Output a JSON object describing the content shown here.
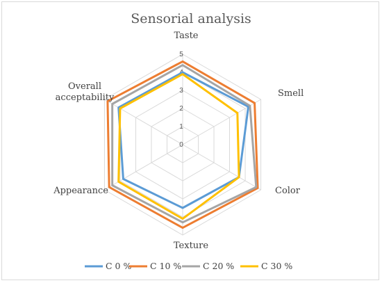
{
  "chart_data": {
    "type": "radar",
    "title": "Sensorial analysis",
    "axes": [
      "Taste",
      "Smell",
      "Color",
      "Texture",
      "Appearance",
      "Overall acceptability"
    ],
    "axis_label_lines": [
      [
        "Taste"
      ],
      [
        "Smell"
      ],
      [
        "Color"
      ],
      [
        "Texture"
      ],
      [
        "Appearance"
      ],
      [
        "Overall",
        "acceptability"
      ]
    ],
    "ticks": [
      "0",
      "1",
      "2",
      "3",
      "4",
      "5"
    ],
    "range": [
      0,
      5
    ],
    "grid": true,
    "legend_position": "bottom",
    "series": [
      {
        "name": "C 0 %",
        "color": "#5b9bd5",
        "values": [
          4.0,
          4.2,
          3.6,
          3.5,
          3.8,
          4.1
        ]
      },
      {
        "name": "C 10 %",
        "color": "#ed7d31",
        "values": [
          4.6,
          4.6,
          4.8,
          4.6,
          4.7,
          4.8
        ]
      },
      {
        "name": "C 20 %",
        "color": "#a5a5a5",
        "values": [
          4.4,
          4.3,
          4.7,
          4.3,
          4.5,
          4.5
        ]
      },
      {
        "name": "C 30 %",
        "color": "#ffc000",
        "values": [
          3.9,
          3.5,
          3.6,
          4.1,
          4.1,
          4.0
        ]
      }
    ]
  }
}
